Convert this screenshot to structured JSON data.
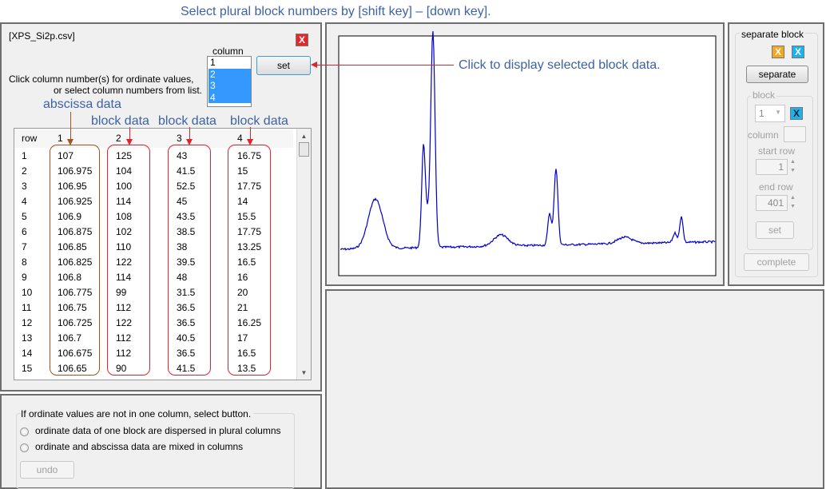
{
  "annotations": {
    "top": "Select plural block numbers by [shift key] – [down key].",
    "set_hint": "Click to display selected block data.",
    "abscissa": "abscissa data",
    "block": "block data"
  },
  "file": {
    "name": "[XPS_Si2p.csv]",
    "close_label": "X"
  },
  "instructions": {
    "line1": "Click column number(s) for ordinate values,",
    "line2": "or select column numbers from list."
  },
  "column_list": {
    "label": "column",
    "items": [
      "1",
      "2",
      "3",
      "4"
    ],
    "selected": [
      "2",
      "3",
      "4"
    ]
  },
  "set_label": "set",
  "table": {
    "headers": [
      "row",
      "1",
      "2",
      "3",
      "4"
    ],
    "rows": [
      [
        "1",
        "107",
        "125",
        "43",
        "16.75"
      ],
      [
        "2",
        "106.975",
        "104",
        "41.5",
        "15"
      ],
      [
        "3",
        "106.95",
        "100",
        "52.5",
        "17.75"
      ],
      [
        "4",
        "106.925",
        "114",
        "45",
        "14"
      ],
      [
        "5",
        "106.9",
        "108",
        "43.5",
        "15.5"
      ],
      [
        "6",
        "106.875",
        "102",
        "38.5",
        "17.75"
      ],
      [
        "7",
        "106.85",
        "110",
        "38",
        "13.25"
      ],
      [
        "8",
        "106.825",
        "122",
        "39.5",
        "16.5"
      ],
      [
        "9",
        "106.8",
        "114",
        "48",
        "16"
      ],
      [
        "10",
        "106.775",
        "99",
        "31.5",
        "20"
      ],
      [
        "11",
        "106.75",
        "112",
        "36.5",
        "21"
      ],
      [
        "12",
        "106.725",
        "122",
        "36.5",
        "16.25"
      ],
      [
        "13",
        "106.7",
        "112",
        "40.5",
        "17"
      ],
      [
        "14",
        "106.675",
        "112",
        "36.5",
        "16.5"
      ],
      [
        "15",
        "106.65",
        "90",
        "41.5",
        "13.5"
      ]
    ]
  },
  "options": {
    "title": "If ordinate values are not in one column, select button.",
    "radio1": "ordinate data of one block are dispersed in plural columns",
    "radio2": "ordinate and abscissa data are mixed in columns",
    "undo": "undo"
  },
  "separate": {
    "title": "separate block",
    "x_orange": "X",
    "x_blue": "X",
    "separate_label": "separate",
    "block_title": "block",
    "block_value": "1",
    "column_label": "column",
    "column_value": "",
    "start_row_label": "start row",
    "start_row": "1",
    "end_row_label": "end row",
    "end_row": "401",
    "set_label": "set",
    "complete_label": "complete"
  },
  "colors": {
    "spectrum": "#0000c8",
    "annotation": "#3d62a6",
    "arrow": "#e0242b",
    "abscissa_box": "#a0561c",
    "selection": "#3399ff"
  }
}
